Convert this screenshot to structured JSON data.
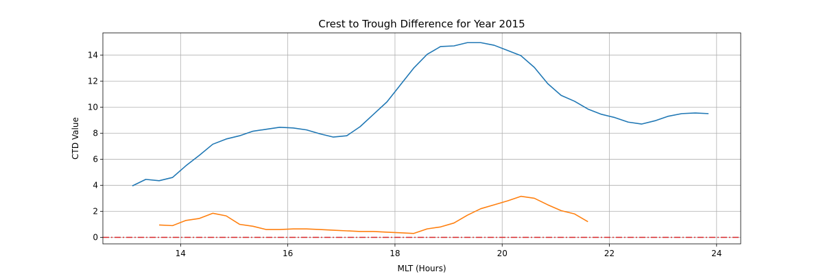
{
  "chart_data": {
    "type": "line",
    "title": "Crest to Trough Difference for Year 2015",
    "xlabel": "MLT (Hours)",
    "ylabel": "CTD Value",
    "xlim": [
      12.55,
      24.45
    ],
    "ylim": [
      -0.5,
      15.7
    ],
    "xticks": [
      14,
      16,
      18,
      20,
      22,
      24
    ],
    "yticks": [
      0,
      2,
      4,
      6,
      8,
      10,
      12,
      14
    ],
    "grid": true,
    "series": [
      {
        "color": "#1f77b4",
        "x": [
          13.1,
          13.35,
          13.6,
          13.85,
          14.1,
          14.35,
          14.6,
          14.85,
          15.1,
          15.35,
          15.6,
          15.85,
          16.1,
          16.35,
          16.6,
          16.85,
          17.1,
          17.35,
          17.6,
          17.85,
          18.1,
          18.35,
          18.6,
          18.85,
          19.1,
          19.35,
          19.6,
          19.85,
          20.1,
          20.35,
          20.6,
          20.85,
          21.1,
          21.35,
          21.6,
          21.85,
          22.1,
          22.35,
          22.6,
          22.85,
          23.1,
          23.35,
          23.6,
          23.85
        ],
        "y": [
          3.95,
          4.45,
          4.35,
          4.6,
          5.5,
          6.3,
          7.15,
          7.55,
          7.8,
          8.15,
          8.3,
          8.45,
          8.4,
          8.25,
          7.95,
          7.7,
          7.8,
          8.5,
          9.45,
          10.4,
          11.7,
          13.0,
          14.05,
          14.65,
          14.7,
          14.95,
          14.95,
          14.75,
          14.35,
          13.95,
          13.05,
          11.8,
          10.9,
          10.45,
          9.85,
          9.45,
          9.2,
          8.85,
          8.7,
          8.95,
          9.3,
          9.5,
          9.55,
          9.5
        ]
      },
      {
        "color": "#ff7f0e",
        "x": [
          13.6,
          13.85,
          14.1,
          14.35,
          14.6,
          14.85,
          15.1,
          15.35,
          15.6,
          15.85,
          16.1,
          16.35,
          16.6,
          16.85,
          17.1,
          17.35,
          17.6,
          17.85,
          18.1,
          18.35,
          18.6,
          18.85,
          19.1,
          19.35,
          19.6,
          19.85,
          20.1,
          20.35,
          20.6,
          20.85,
          21.1,
          21.35,
          21.6
        ],
        "y": [
          0.95,
          0.9,
          1.3,
          1.45,
          1.85,
          1.65,
          1.0,
          0.85,
          0.6,
          0.6,
          0.65,
          0.65,
          0.6,
          0.55,
          0.5,
          0.45,
          0.45,
          0.4,
          0.35,
          0.3,
          0.65,
          0.8,
          1.1,
          1.7,
          2.2,
          2.5,
          2.8,
          3.15,
          3.0,
          2.5,
          2.05,
          1.8,
          1.2
        ]
      }
    ],
    "reference_line": {
      "y": 0,
      "color": "#d62728",
      "style": "dash-dot"
    }
  }
}
